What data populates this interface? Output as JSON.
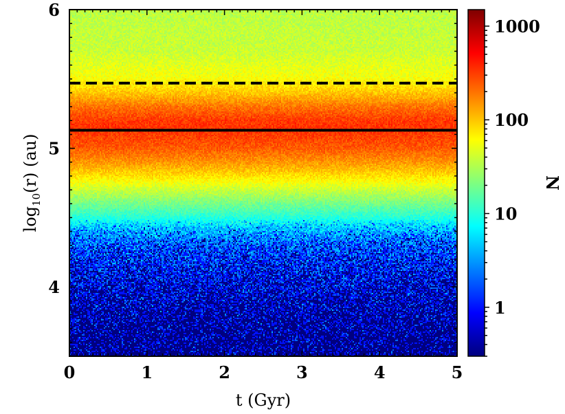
{
  "chart_data": {
    "type": "heatmap",
    "title": "",
    "xlabel": "t (Gyr)",
    "ylabel_base": "log",
    "ylabel_sub": "10",
    "ylabel_rest": "(r) (au)",
    "xlim": [
      0,
      5
    ],
    "ylim": [
      3.5,
      6
    ],
    "x_ticks": [
      "0",
      "1",
      "2",
      "3",
      "4",
      "5"
    ],
    "x_tick_values": [
      0,
      1,
      2,
      3,
      4,
      5
    ],
    "y_ticks": [
      "4",
      "5",
      "6"
    ],
    "y_tick_values": [
      4,
      5,
      6
    ],
    "colorbar": {
      "label": "N",
      "scale": "log",
      "colormap": "jet",
      "range": [
        0.3,
        1500
      ],
      "ticks": [
        "1",
        "10",
        "100",
        "1000"
      ],
      "tick_values": [
        1,
        10,
        100,
        1000
      ]
    },
    "reference_lines": [
      {
        "y": 5.47,
        "style": "dashed",
        "color": "#000000"
      },
      {
        "y": 5.13,
        "style": "solid",
        "color": "#000000"
      }
    ],
    "density_profile": {
      "log10_r": [
        3.5,
        3.7,
        3.9,
        4.1,
        4.3,
        4.4,
        4.5,
        4.6,
        4.7,
        4.8,
        4.9,
        5.0,
        5.1,
        5.15,
        5.2,
        5.3,
        5.4,
        5.5,
        5.7,
        6.0
      ],
      "N_typical": [
        0.3,
        0.4,
        0.6,
        1,
        2,
        4,
        10,
        20,
        40,
        80,
        150,
        250,
        320,
        350,
        330,
        200,
        100,
        60,
        40,
        35
      ]
    },
    "grid": false,
    "legend": "none"
  }
}
